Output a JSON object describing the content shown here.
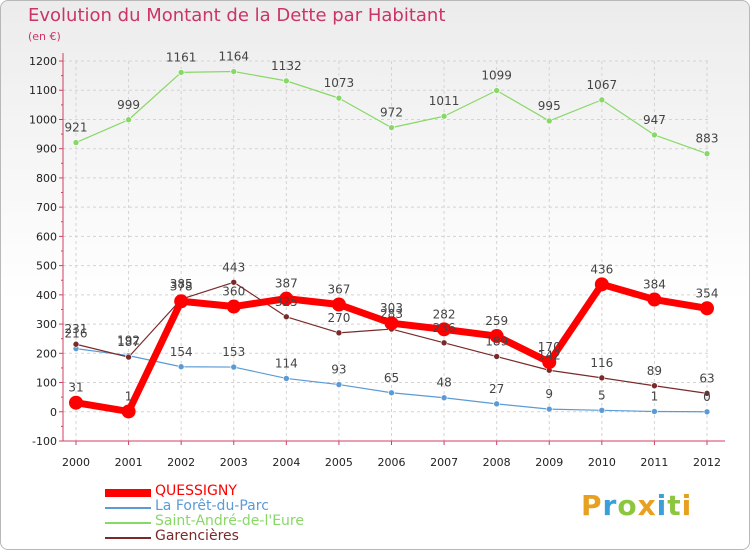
{
  "title": "Evolution du Montant de la Dette par Habitant",
  "subtitle": "(en €)",
  "logo": {
    "text": "Proxiti",
    "colors": [
      "#e8a020",
      "#3aa0d8",
      "#8cc63f",
      "#e8a020",
      "#3aa0d8",
      "#8cc63f",
      "#e8a020"
    ]
  },
  "chart_data": {
    "type": "line",
    "x": [
      "2000",
      "2001",
      "2002",
      "2003",
      "2004",
      "2005",
      "2006",
      "2007",
      "2008",
      "2009",
      "2010",
      "2011",
      "2012"
    ],
    "ylim": [
      -100,
      1200
    ],
    "yticks": [
      "-100",
      "0",
      "100",
      "200",
      "300",
      "400",
      "500",
      "600",
      "700",
      "800",
      "900",
      "1000",
      "1100",
      "1200"
    ],
    "grid": true,
    "legend_placement": "bottom-left",
    "series": [
      {
        "name": "QUESSIGNY",
        "color": "#ff0000",
        "values": [
          31,
          1,
          378,
          360,
          387,
          367,
          303,
          282,
          259,
          170,
          436,
          384,
          354
        ],
        "labels": [
          "31",
          "1",
          "378",
          "360",
          "387",
          "367",
          "303",
          "282",
          "259",
          "170",
          "436",
          "384",
          "354"
        ]
      },
      {
        "name": "La Forêt-du-Parc",
        "color": "#5b9bd5",
        "values": [
          216,
          192,
          154,
          153,
          114,
          93,
          65,
          48,
          27,
          9,
          5,
          1,
          0
        ],
        "labels": [
          "216",
          "192",
          "154",
          "153",
          "114",
          "93",
          "65",
          "48",
          "27",
          "9",
          "5",
          "1",
          "0"
        ]
      },
      {
        "name": "Saint-André-de-l'Eure",
        "color": "#88d868",
        "values": [
          921,
          999,
          1161,
          1164,
          1132,
          1073,
          972,
          1011,
          1099,
          995,
          1067,
          947,
          883
        ],
        "labels": [
          "921",
          "999",
          "1161",
          "1164",
          "1132",
          "1073",
          "972",
          "1011",
          "1099",
          "995",
          "1067",
          "947",
          "883"
        ]
      },
      {
        "name": "Garencières",
        "color": "#7a2a2a",
        "values": [
          231,
          187,
          385,
          443,
          325,
          270,
          283,
          236,
          189,
          142,
          116,
          89,
          63
        ],
        "labels": [
          "231",
          "187",
          "385",
          "443",
          "325",
          "270",
          "283",
          "236",
          "189",
          "142",
          "116",
          "89",
          "63"
        ]
      }
    ]
  }
}
